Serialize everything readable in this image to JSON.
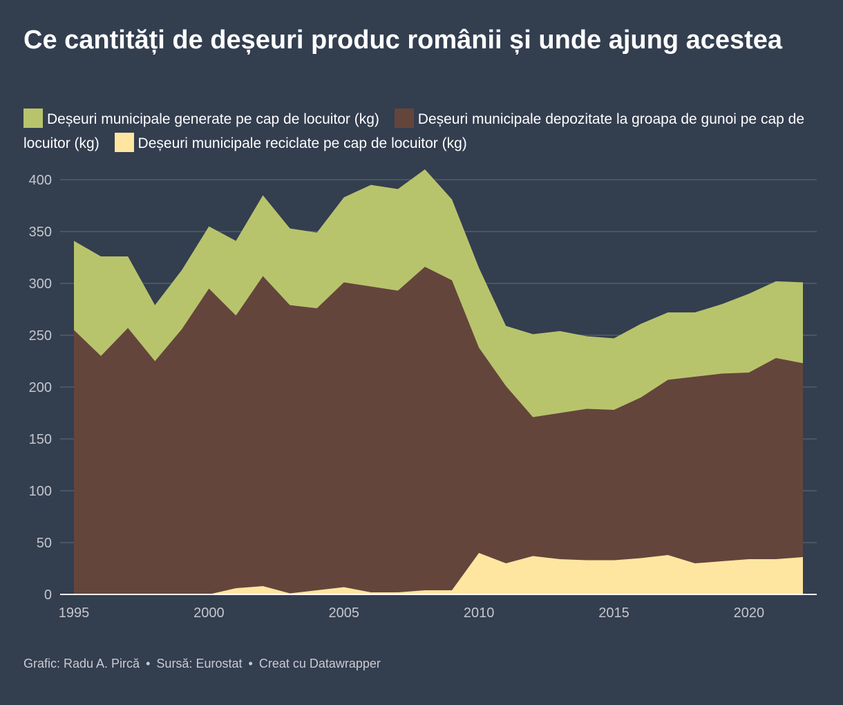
{
  "title": "Ce cantități de deșeuri produc românii și unde ajung acestea",
  "legend": [
    {
      "label": "Deșeuri municipale generate pe cap de locuitor (kg)",
      "color": "#b8c46c"
    },
    {
      "label": "Deșeuri municipale depozitate la groapa de gunoi pe cap de locuitor (kg)",
      "color": "#64453c"
    },
    {
      "label": "Deșeuri municipale reciclate pe cap de locuitor (kg)",
      "color": "#ffe6a0"
    }
  ],
  "footer": {
    "author": "Grafic: Radu A. Pircă",
    "source": "Sursă: Eurostat",
    "tool": "Creat cu Datawrapper",
    "separator": "•"
  },
  "colors": {
    "background": "#333e4f",
    "grid": "#4b5566",
    "baseline": "#ffffff"
  },
  "chart_data": {
    "type": "area",
    "title": "Ce cantități de deșeuri produc românii și unde ajung acestea",
    "xlabel": "",
    "ylabel": "",
    "x": [
      1995,
      1996,
      1997,
      1998,
      1999,
      2000,
      2001,
      2002,
      2003,
      2004,
      2005,
      2006,
      2007,
      2008,
      2009,
      2010,
      2011,
      2012,
      2013,
      2014,
      2015,
      2016,
      2017,
      2018,
      2019,
      2020,
      2021,
      2022
    ],
    "xlim": [
      1995,
      2022
    ],
    "ylim": [
      0,
      400
    ],
    "yticks": [
      0,
      50,
      100,
      150,
      200,
      250,
      300,
      350,
      400
    ],
    "xticks": [
      1995,
      2000,
      2005,
      2010,
      2015,
      2020
    ],
    "grid": true,
    "stacked": false,
    "legend_position": "top",
    "series": [
      {
        "name": "Deșeuri municipale generate pe cap de locuitor (kg)",
        "color": "#b8c46c",
        "values": [
          341,
          326,
          326,
          279,
          313,
          355,
          341,
          385,
          353,
          349,
          383,
          395,
          391,
          410,
          381,
          315,
          259,
          251,
          254,
          249,
          247,
          261,
          272,
          272,
          280,
          290,
          302,
          301
        ]
      },
      {
        "name": "Deșeuri municipale depozitate la groapa de gunoi pe cap de locuitor (kg)",
        "color": "#64453c",
        "values": [
          255,
          230,
          257,
          225,
          256,
          295,
          269,
          307,
          279,
          276,
          301,
          297,
          293,
          316,
          303,
          238,
          201,
          171,
          175,
          179,
          178,
          190,
          207,
          210,
          213,
          214,
          228,
          223
        ]
      },
      {
        "name": "Deșeuri municipale reciclate pe cap de locuitor (kg)",
        "color": "#ffe6a0",
        "values": [
          0,
          0,
          0,
          0,
          0,
          0,
          6,
          8,
          1,
          4,
          7,
          2,
          2,
          4,
          4,
          40,
          30,
          37,
          34,
          33,
          33,
          35,
          38,
          30,
          32,
          34,
          34,
          36
        ]
      }
    ]
  }
}
